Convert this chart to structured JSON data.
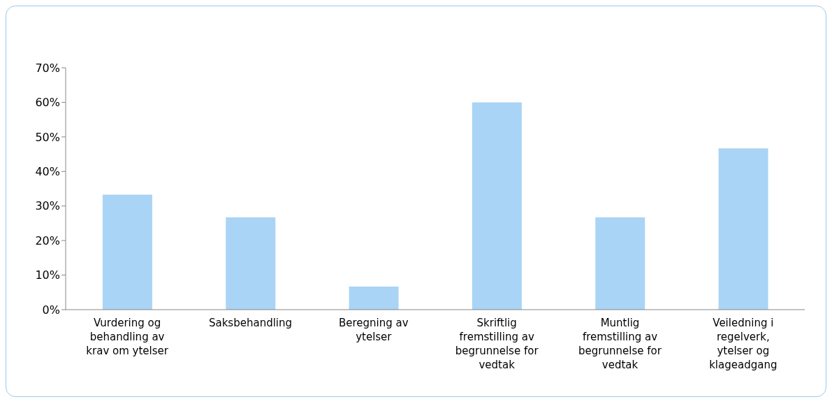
{
  "chart_data": {
    "type": "bar",
    "categories": [
      "Vurdering og behandling av krav om ytelser",
      "Saksbehandling",
      "Beregning av ytelser",
      "Skriftlig fremstilling av begrunnelse for vedtak",
      "Muntlig fremstilling av begrunnelse for vedtak",
      "Veiledning i regelverk, ytelser og klageadgang"
    ],
    "values": [
      33.3,
      26.7,
      6.7,
      60,
      26.7,
      46.7
    ],
    "color": "#a9d4f5",
    "ylim": [
      0,
      70
    ],
    "yticks": [
      {
        "value": 0,
        "label": "0%"
      },
      {
        "value": 10,
        "label": "10%"
      },
      {
        "value": 20,
        "label": "20%"
      },
      {
        "value": 30,
        "label": "30%"
      },
      {
        "value": 40,
        "label": "40%"
      },
      {
        "value": 50,
        "label": "50%"
      },
      {
        "value": 60,
        "label": "60%"
      },
      {
        "value": 70,
        "label": "70%"
      }
    ],
    "grid": false,
    "legend": false
  }
}
